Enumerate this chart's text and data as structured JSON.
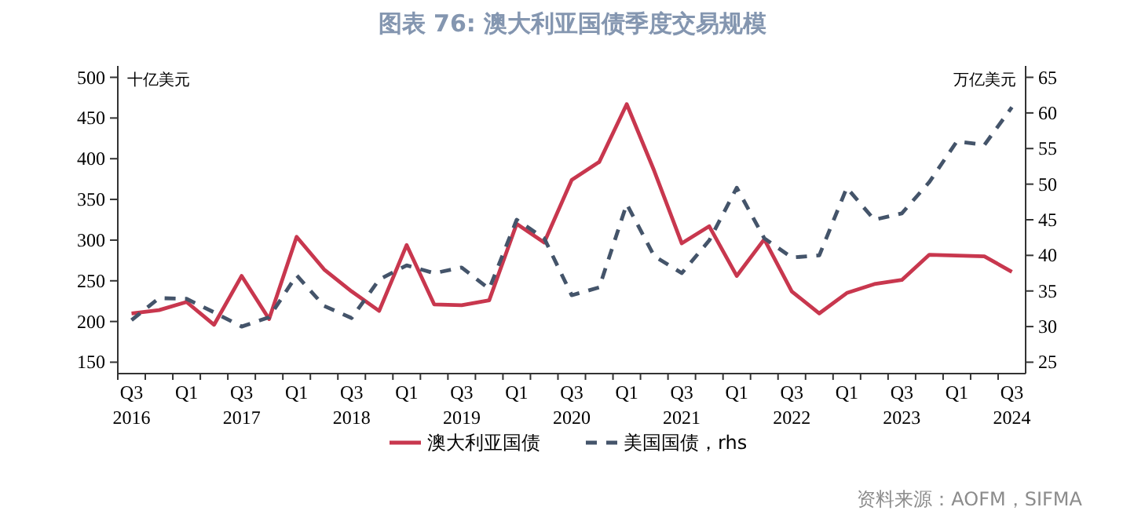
{
  "chart_data": {
    "type": "line",
    "title": "图表 76: 澳大利亚国债季度交易规模",
    "ylabel": "十亿美元",
    "y2label": "万亿美元",
    "categories": [
      "Q3 2016",
      null,
      "Q1",
      null,
      "Q3 2017",
      null,
      "Q1",
      null,
      "Q3 2018",
      null,
      "Q1",
      null,
      "Q3 2019",
      null,
      "Q1",
      null,
      "Q3 2020",
      null,
      "Q1",
      null,
      "Q3 2021",
      null,
      "Q1",
      null,
      "Q3 2022",
      null,
      "Q1",
      null,
      "Q3 2023",
      null,
      "Q1",
      null,
      "Q3 2024"
    ],
    "series": [
      {
        "name": "澳大利亚国债",
        "color": "#c8374e",
        "line_style": "solid",
        "values": [
          210,
          214,
          224,
          196,
          256,
          203,
          304,
          264,
          237,
          213,
          294,
          221,
          220,
          226,
          320,
          297,
          374,
          396,
          467,
          385,
          296,
          317,
          256,
          301,
          237,
          210,
          235,
          246,
          251,
          282,
          281,
          280,
          261
        ]
      },
      {
        "name": "美国国债，rhs",
        "color": "#44546a",
        "line_style": "dashed",
        "axis": "y2",
        "values": [
          30.9,
          34.0,
          33.9,
          32.0,
          30.0,
          31.3,
          37.2,
          32.9,
          31.2,
          36.6,
          38.6,
          37.5,
          38.3,
          35.3,
          45.0,
          42.4,
          34.4,
          35.5,
          47.2,
          39.9,
          37.5,
          42.1,
          49.5,
          42.4,
          39.7,
          40.0,
          49.5,
          45.0,
          45.9,
          50.3,
          56.0,
          55.5,
          60.8
        ]
      }
    ],
    "ylim": [
      136,
      514
    ],
    "yticks": [
      150,
      200,
      250,
      300,
      350,
      400,
      450,
      500
    ],
    "y2lim": [
      23.4,
      66.6
    ],
    "y2ticks": [
      25,
      30,
      35,
      40,
      45,
      50,
      55,
      60,
      65
    ],
    "legend": "bottom",
    "annotations": [
      "资料来源：AOFM，SIFMA"
    ]
  }
}
